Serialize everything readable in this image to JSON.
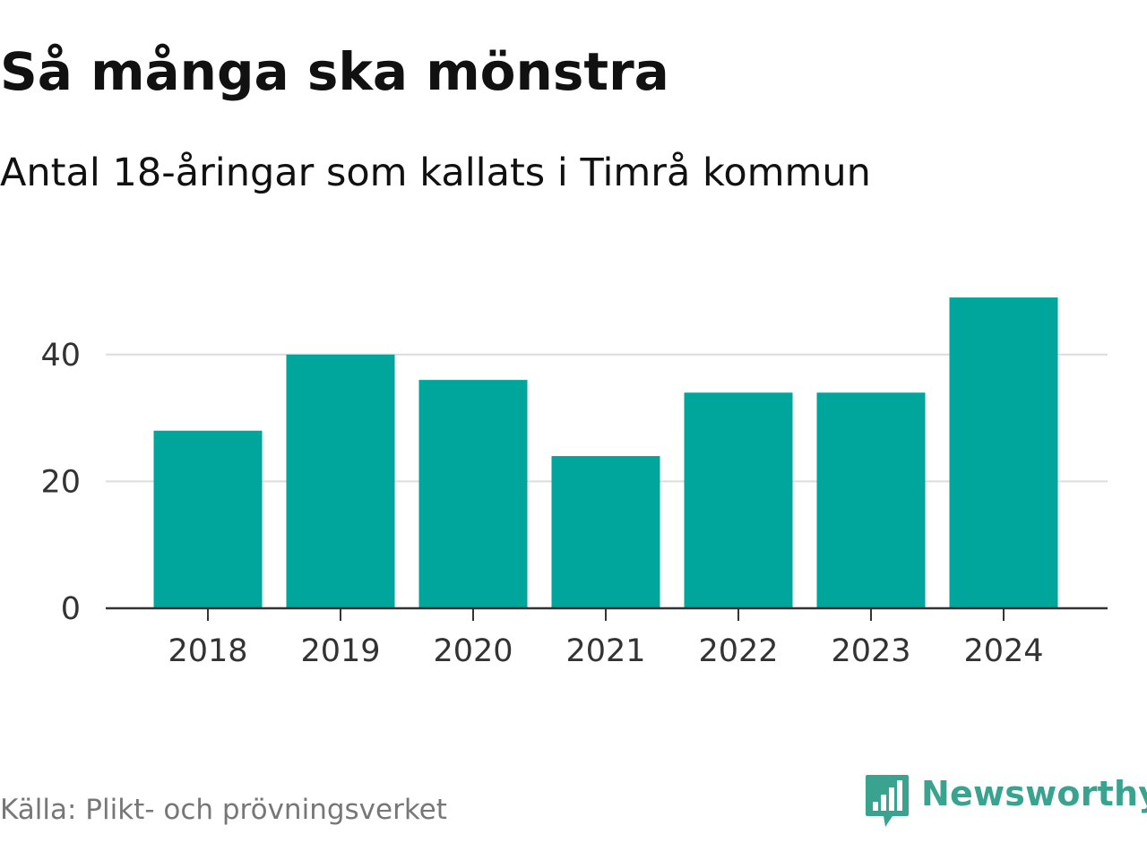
{
  "chart_data": {
    "type": "bar",
    "title": "Så många ska mönstra",
    "subtitle": "Antal 18-åringar som kallats i Timrå kommun",
    "categories": [
      "2018",
      "2019",
      "2020",
      "2021",
      "2022",
      "2023",
      "2024"
    ],
    "values": [
      28,
      40,
      36,
      24,
      34,
      34,
      49
    ],
    "ylim": [
      0,
      50
    ],
    "yticks": [
      0,
      20,
      40
    ],
    "xlabel": "",
    "ylabel": "",
    "grid": true,
    "bar_color": "#00a69b"
  },
  "footer": {
    "source": "Källa: Plikt- och prövningsverket",
    "brand": "Newsworthy",
    "brand_color": "#3aa390",
    "brand_icon": "newsworthy-chat-bars-icon"
  }
}
